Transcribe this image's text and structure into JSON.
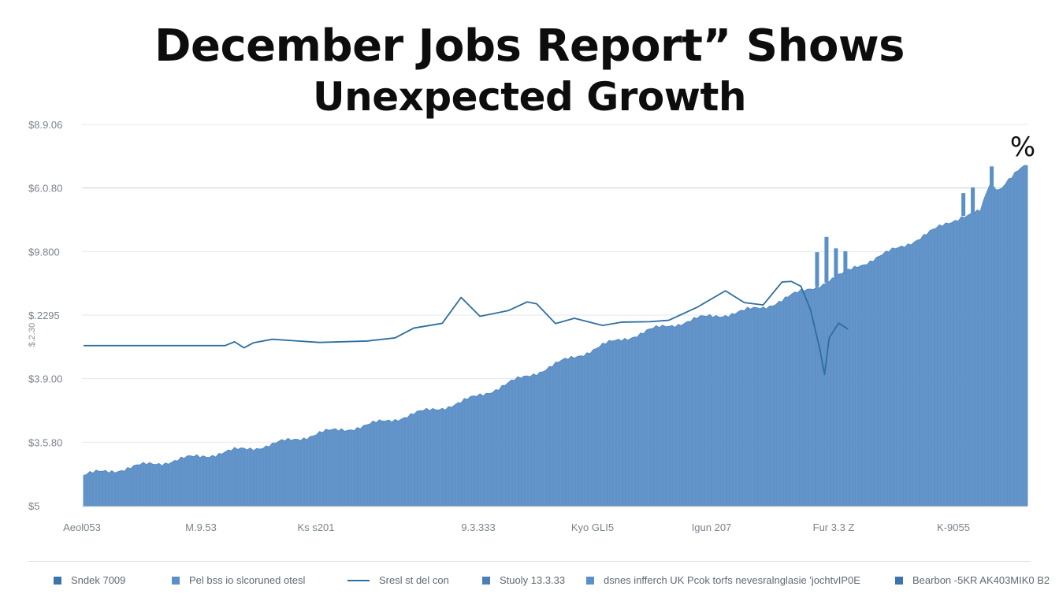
{
  "title_line1": "December Jobs Report” Shows",
  "title_line2": "Unexpected Growth",
  "corner_mark": "%",
  "chart_data": {
    "type": "area",
    "title": "December Jobs Report” Shows Unexpected Growth",
    "y_tick_labels": [
      "$8.9.06",
      "$6.0.80",
      "$9.800",
      "$.2295",
      "$3.9.00",
      "$3.5.80",
      "$5"
    ],
    "y_axis_side_label": "$.2.30",
    "x_tick_labels": [
      "Aeol053",
      "M.9.53",
      "Ks s201",
      "9.3.333",
      "Kyo GLI5",
      "Igun 207",
      "Fur 3.3 Z",
      "K-9055"
    ],
    "grid": true,
    "legend_position": "bottom",
    "ylim": [
      0,
      100
    ],
    "series": [
      {
        "name": "Sndek 7009",
        "kind": "area",
        "x": [
          0,
          5,
          10,
          15,
          20,
          25,
          30,
          35,
          40,
          45,
          50,
          55,
          60,
          65,
          70,
          72,
          75,
          78,
          80,
          82,
          85,
          90,
          93,
          95,
          96,
          97,
          98,
          99,
          100
        ],
        "values": [
          8,
          10,
          12,
          14,
          16,
          19,
          21,
          24,
          27,
          32,
          37,
          42,
          46,
          49,
          51,
          52,
          55,
          58,
          60,
          63,
          66,
          72,
          76,
          77,
          84,
          83,
          86,
          88,
          89
        ],
        "color": "#5b8fc7"
      },
      {
        "name": "Sresl st del con",
        "kind": "line",
        "x": [
          0,
          15,
          16,
          17,
          18,
          20,
          25,
          30,
          33,
          35,
          38,
          40,
          42,
          45,
          47,
          48,
          50,
          52,
          55,
          57,
          60,
          62,
          65,
          68,
          70,
          72,
          74,
          75,
          76,
          77,
          78,
          78.5,
          79,
          80,
          81
        ],
        "values": [
          42,
          42,
          43,
          41,
          43,
          43.5,
          43.5,
          43,
          44.5,
          46,
          48,
          54,
          50,
          51,
          54,
          53,
          48,
          49,
          47,
          48,
          48,
          49,
          52,
          57,
          53,
          53,
          58,
          59,
          57,
          52,
          41,
          35,
          44,
          48,
          46
        ],
        "color": "#2e6f9e"
      }
    ]
  },
  "legend": [
    {
      "label": "Sndek 7009",
      "kind": "square",
      "color": "#3e74ad"
    },
    {
      "label": "Pel bss io slcoruned otesl",
      "kind": "square",
      "color": "#5b8fc7"
    },
    {
      "label": "Sresl st del con",
      "kind": "line",
      "color": "#2e6f9e"
    },
    {
      "label": "Stuoly 13.3.33",
      "kind": "square",
      "color": "#4a7fb8"
    },
    {
      "label": "dsnes infferch UK Pcok torfs nevesralnglasie   'jochtvIP0E",
      "kind": "square",
      "color": "#5b8fc7"
    },
    {
      "label": "Bearbon -5KR AK403MIK0 B2",
      "kind": "square",
      "color": "#3e74ad"
    }
  ]
}
